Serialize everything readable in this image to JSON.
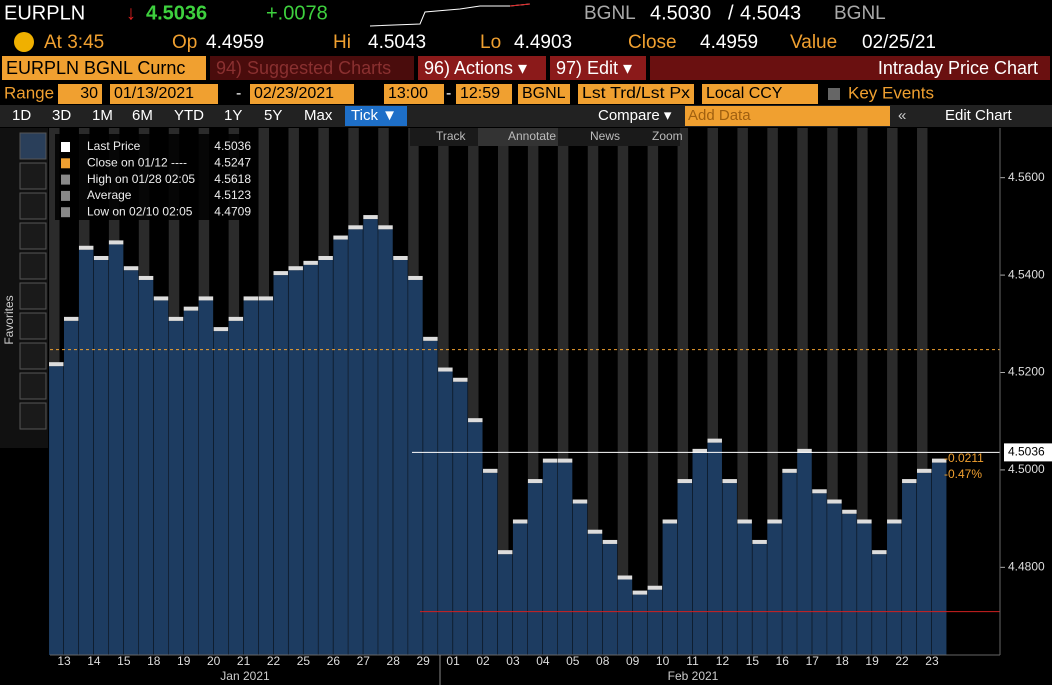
{
  "header": {
    "ticker": "EURPLN",
    "arrow": "↓",
    "last": "4.5036",
    "change": "+.0078",
    "source": "BGNL",
    "bid": "4.5030",
    "sep": "/",
    "ask": "4.5043",
    "source2": "BGNL"
  },
  "quote": {
    "at": "At 3:45",
    "op_label": "Op",
    "op": "4.4959",
    "hi_label": "Hi",
    "hi": "4.5043",
    "lo_label": "Lo",
    "lo": "4.4903",
    "close_label": "Close",
    "close": "4.4959",
    "value_label": "Value",
    "value": "02/25/21"
  },
  "toolbar": {
    "security": "EURPLN BGNL Curnc",
    "suggested": "94) Suggested Charts",
    "actions": "96) Actions ▾",
    "edit": "97) Edit ▾",
    "title": "Intraday Price Chart"
  },
  "range": {
    "label": "Range",
    "days": "30",
    "start": "01/13/2021",
    "dash": "-",
    "end": "02/23/2021",
    "from": "13:00",
    "dash2": "-",
    "to": "12:59",
    "source": "BGNL",
    "field": "Lst Trd/Lst Px",
    "ccy": "Local CCY",
    "events": "Key Events"
  },
  "periods": [
    "1D",
    "3D",
    "1M",
    "6M",
    "YTD",
    "1Y",
    "5Y",
    "Max",
    "Tick ▼"
  ],
  "compare": "Compare ▾",
  "add_data": "Add Data",
  "edit_chart": "Edit Chart",
  "tools": [
    "Track",
    "Annotate",
    "News",
    "Zoom"
  ],
  "favorites": "Favorites",
  "legend": [
    {
      "label": "Last Price",
      "value": "4.5036"
    },
    {
      "label": "Close on 01/12 ----",
      "value": "4.5247"
    },
    {
      "label": "High on 01/28 02:05",
      "value": "4.5618"
    },
    {
      "label": "Average",
      "value": "4.5123"
    },
    {
      "label": "Low on 02/10 02:05",
      "value": "4.4709"
    }
  ],
  "chart": {
    "ylim": [
      4.462,
      4.5702
    ],
    "yticks": [
      {
        "value": 4.56,
        "label": "4.5600"
      },
      {
        "value": 4.54,
        "label": "4.5400"
      },
      {
        "value": 4.52,
        "label": "4.5200"
      },
      {
        "value": 4.5,
        "label": "4.5000"
      },
      {
        "value": 4.48,
        "label": "4.4800"
      }
    ],
    "days": [
      "13",
      "14",
      "15",
      "18",
      "19",
      "20",
      "21",
      "22",
      "25",
      "26",
      "27",
      "28",
      "29",
      "01",
      "02",
      "03",
      "04",
      "05",
      "08",
      "09",
      "10",
      "11",
      "12",
      "15",
      "16",
      "17",
      "18",
      "19",
      "22",
      "23"
    ],
    "months": [
      "Jan 2021",
      "Feb 2021"
    ],
    "values": [
      4.5213,
      4.5306,
      4.5452,
      4.5431,
      4.5463,
      4.541,
      4.539,
      4.5348,
      4.5306,
      4.5327,
      4.5348,
      4.5285,
      4.5306,
      4.5348,
      4.5348,
      4.54,
      4.541,
      4.5421,
      4.5431,
      4.5473,
      4.5494,
      4.5515,
      4.5494,
      4.5431,
      4.539,
      4.5265,
      4.5202,
      4.5181,
      4.5098,
      4.4994,
      4.4827,
      4.489,
      4.4973,
      4.5015,
      4.5015,
      4.4931,
      4.4869,
      4.4848,
      4.4775,
      4.4744,
      4.4754,
      4.489,
      4.4973,
      4.5035,
      4.5056,
      4.4973,
      4.489,
      4.4848,
      4.489,
      4.4994,
      4.5035,
      4.4952,
      4.4931,
      4.491,
      4.489,
      4.4827,
      4.489,
      4.4973,
      4.4994,
      4.5015
    ],
    "last_line": 4.5036,
    "last_label": "4.5036",
    "close_line": 4.5247,
    "low_line": 4.4709,
    "net_change": "-0.0211",
    "pct_change": "-0.47%"
  }
}
